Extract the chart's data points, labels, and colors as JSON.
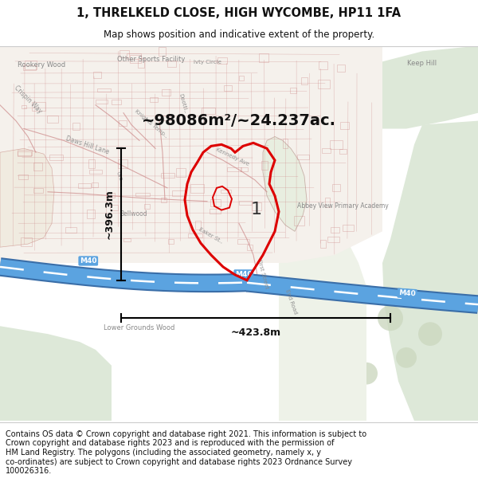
{
  "title": "1, THRELKELD CLOSE, HIGH WYCOMBE, HP11 1FA",
  "subtitle": "Map shows position and indicative extent of the property.",
  "footer": "Contains OS data © Crown copyright and database right 2021. This information is subject to\nCrown copyright and database rights 2023 and is reproduced with the permission of\nHM Land Registry. The polygons (including the associated geometry, namely x, y\nco-ordinates) are subject to Crown copyright and database rights 2023 Ordnance Survey\n100026316.",
  "area_label": "~98086m²/~24.237ac.",
  "height_label": "~396.3m",
  "width_label": "~423.8m",
  "plot_label": "1",
  "map_bg": "#f7f4ef",
  "green_light": "#dde8d8",
  "green_mid": "#ccd8c0",
  "green_dark": "#c0ccb0",
  "road_blue": "#5ba3e0",
  "road_outline": "#4080bb",
  "plot_border_color": "#dd0000",
  "street_color": "#d4888888",
  "text_gray": "#888888",
  "title_color": "#111111",
  "figsize": [
    6.0,
    6.25
  ],
  "dpi": 100,
  "title_fontsize": 10.5,
  "subtitle_fontsize": 8.5,
  "area_fontsize": 14,
  "dim_fontsize": 9,
  "plot_label_fontsize": 16,
  "footer_fontsize": 7.0
}
